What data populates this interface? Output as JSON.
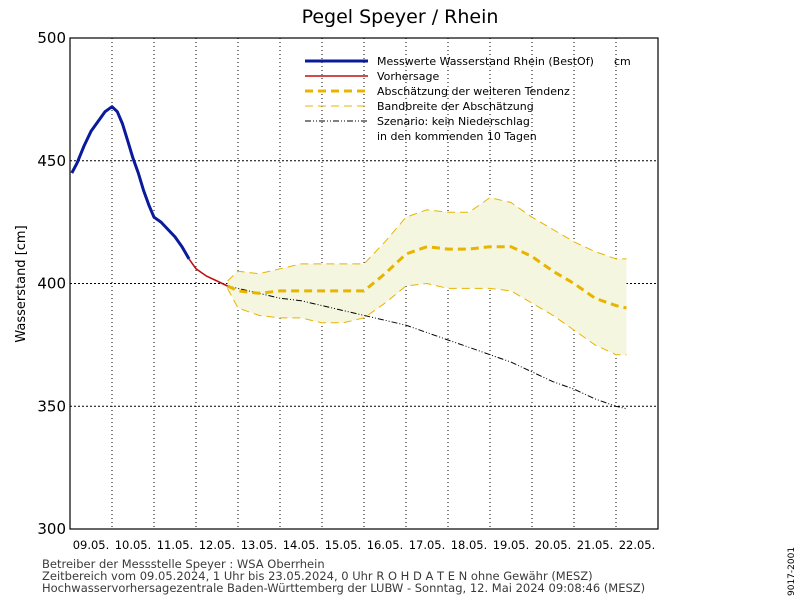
{
  "chart_data": {
    "type": "line",
    "title": "Pegel Speyer / Rhein",
    "ylabel": "Wasserstand [cm]",
    "ylim": [
      300,
      500
    ],
    "yticks": [
      300,
      350,
      400,
      450,
      500
    ],
    "x_domain": [
      "09.05.2024 00:00",
      "23.05.2024 00:00"
    ],
    "day_labels": [
      "09.05.",
      "10.05.",
      "11.05.",
      "12.05.",
      "13.05.",
      "14.05.",
      "15.05.",
      "16.05.",
      "17.05.",
      "18.05.",
      "19.05.",
      "20.05.",
      "21.05.",
      "22.05."
    ],
    "grid": true,
    "legend_position": "top-right",
    "legend": {
      "line1": "Messwerte Wasserstand Rhein (BestOf)",
      "unit": "cm",
      "line2": "Vorhersage",
      "line3": "Abschätzung der weiteren Tendenz",
      "line4": "Bandbreite der Abschätzung",
      "line5a": "Szenario: kein Niederschlag",
      "line5b": "in den kommenden 10 Tagen"
    },
    "colors": {
      "measured": "#0a1a9a",
      "forecast": "#c01010",
      "tendency": "#e8b400",
      "band_fill": "#f4f6e0",
      "band_line": "#e8b400",
      "scenario": "#000000"
    },
    "series": [
      {
        "name": "Messwerte Wasserstand Rhein (BestOf)",
        "points": [
          [
            "09.05.2024 01:00",
            445
          ],
          [
            "09.05.2024 04:00",
            449
          ],
          [
            "09.05.2024 08:00",
            456
          ],
          [
            "09.05.2024 12:00",
            462
          ],
          [
            "09.05.2024 16:00",
            466
          ],
          [
            "09.05.2024 20:00",
            470
          ],
          [
            "10.05.2024 00:00",
            472
          ],
          [
            "10.05.2024 03:00",
            470
          ],
          [
            "10.05.2024 06:00",
            465
          ],
          [
            "10.05.2024 09:00",
            458
          ],
          [
            "10.05.2024 12:00",
            451
          ],
          [
            "10.05.2024 15:00",
            445
          ],
          [
            "10.05.2024 18:00",
            438
          ],
          [
            "10.05.2024 21:00",
            432
          ],
          [
            "11.05.2024 00:00",
            427
          ],
          [
            "11.05.2024 04:00",
            425
          ],
          [
            "11.05.2024 08:00",
            422
          ],
          [
            "11.05.2024 12:00",
            419
          ],
          [
            "11.05.2024 16:00",
            415
          ],
          [
            "11.05.2024 20:00",
            410
          ]
        ]
      },
      {
        "name": "Vorhersage",
        "points": [
          [
            "11.05.2024 20:00",
            410
          ],
          [
            "12.05.2024 00:00",
            406
          ],
          [
            "12.05.2024 06:00",
            403
          ],
          [
            "12.05.2024 12:00",
            401
          ],
          [
            "12.05.2024 18:00",
            399
          ]
        ]
      },
      {
        "name": "Abschätzung der weiteren Tendenz",
        "points": [
          [
            "12.05.2024 18:00",
            399
          ],
          [
            "13.05.2024 00:00",
            397
          ],
          [
            "13.05.2024 12:00",
            396
          ],
          [
            "14.05.2024 00:00",
            397
          ],
          [
            "14.05.2024 12:00",
            397
          ],
          [
            "15.05.2024 00:00",
            397
          ],
          [
            "15.05.2024 12:00",
            397
          ],
          [
            "16.05.2024 00:00",
            397
          ],
          [
            "16.05.2024 12:00",
            404
          ],
          [
            "17.05.2024 00:00",
            412
          ],
          [
            "17.05.2024 12:00",
            415
          ],
          [
            "18.05.2024 00:00",
            414
          ],
          [
            "18.05.2024 12:00",
            414
          ],
          [
            "19.05.2024 00:00",
            415
          ],
          [
            "19.05.2024 12:00",
            415
          ],
          [
            "20.05.2024 00:00",
            411
          ],
          [
            "20.05.2024 12:00",
            405
          ],
          [
            "21.05.2024 00:00",
            400
          ],
          [
            "21.05.2024 12:00",
            394
          ],
          [
            "22.05.2024 00:00",
            391
          ],
          [
            "22.05.2024 06:00",
            390
          ]
        ]
      },
      {
        "name": "Bandbreite der Abschätzung",
        "upper": [
          [
            "12.05.2024 18:00",
            401
          ],
          [
            "13.05.2024 00:00",
            405
          ],
          [
            "13.05.2024 12:00",
            404
          ],
          [
            "14.05.2024 00:00",
            406
          ],
          [
            "14.05.2024 12:00",
            408
          ],
          [
            "15.05.2024 00:00",
            408
          ],
          [
            "15.05.2024 12:00",
            408
          ],
          [
            "16.05.2024 00:00",
            408
          ],
          [
            "16.05.2024 12:00",
            417
          ],
          [
            "17.05.2024 00:00",
            427
          ],
          [
            "17.05.2024 12:00",
            430
          ],
          [
            "18.05.2024 00:00",
            429
          ],
          [
            "18.05.2024 12:00",
            429
          ],
          [
            "19.05.2024 00:00",
            435
          ],
          [
            "19.05.2024 12:00",
            433
          ],
          [
            "20.05.2024 00:00",
            427
          ],
          [
            "20.05.2024 12:00",
            422
          ],
          [
            "21.05.2024 00:00",
            417
          ],
          [
            "21.05.2024 12:00",
            413
          ],
          [
            "22.05.2024 00:00",
            410
          ],
          [
            "22.05.2024 06:00",
            410
          ]
        ],
        "lower": [
          [
            "12.05.2024 18:00",
            398
          ],
          [
            "13.05.2024 00:00",
            390
          ],
          [
            "13.05.2024 12:00",
            387
          ],
          [
            "14.05.2024 00:00",
            386
          ],
          [
            "14.05.2024 12:00",
            386
          ],
          [
            "15.05.2024 00:00",
            384
          ],
          [
            "15.05.2024 12:00",
            384
          ],
          [
            "16.05.2024 00:00",
            386
          ],
          [
            "16.05.2024 12:00",
            392
          ],
          [
            "17.05.2024 00:00",
            399
          ],
          [
            "17.05.2024 12:00",
            400
          ],
          [
            "18.05.2024 00:00",
            398
          ],
          [
            "18.05.2024 12:00",
            398
          ],
          [
            "19.05.2024 00:00",
            398
          ],
          [
            "19.05.2024 12:00",
            397
          ],
          [
            "20.05.2024 00:00",
            392
          ],
          [
            "20.05.2024 12:00",
            387
          ],
          [
            "21.05.2024 00:00",
            381
          ],
          [
            "21.05.2024 12:00",
            375
          ],
          [
            "22.05.2024 00:00",
            371
          ],
          [
            "22.05.2024 06:00",
            371
          ]
        ]
      },
      {
        "name": "Szenario: kein Niederschlag in den kommenden 10 Tagen",
        "points": [
          [
            "12.05.2024 18:00",
            399
          ],
          [
            "13.05.2024 12:00",
            396
          ],
          [
            "14.05.2024 00:00",
            394
          ],
          [
            "14.05.2024 12:00",
            393
          ],
          [
            "15.05.2024 00:00",
            391
          ],
          [
            "15.05.2024 12:00",
            389
          ],
          [
            "16.05.2024 00:00",
            387
          ],
          [
            "16.05.2024 12:00",
            385
          ],
          [
            "17.05.2024 00:00",
            383
          ],
          [
            "17.05.2024 12:00",
            380
          ],
          [
            "18.05.2024 00:00",
            377
          ],
          [
            "18.05.2024 12:00",
            374
          ],
          [
            "19.05.2024 00:00",
            371
          ],
          [
            "19.05.2024 12:00",
            368
          ],
          [
            "20.05.2024 00:00",
            364
          ],
          [
            "20.05.2024 12:00",
            360
          ],
          [
            "21.05.2024 00:00",
            357
          ],
          [
            "21.05.2024 12:00",
            353
          ],
          [
            "22.05.2024 00:00",
            350
          ],
          [
            "22.05.2024 06:00",
            349
          ]
        ]
      }
    ]
  },
  "footer": {
    "line1": "Betreiber der Messstelle Speyer : WSA Oberrhein",
    "line2": "Zeitbereich vom 09.05.2024, 1 Uhr bis 23.05.2024, 0 Uhr   R O H D A T E N ohne Gewähr (MESZ)",
    "line3": "Hochwasservorhersagezentrale Baden-Württemberg der LUBW - Sonntag, 12. Mai 2024 09:08:46 (MESZ)"
  },
  "side_label": "9017-2001"
}
